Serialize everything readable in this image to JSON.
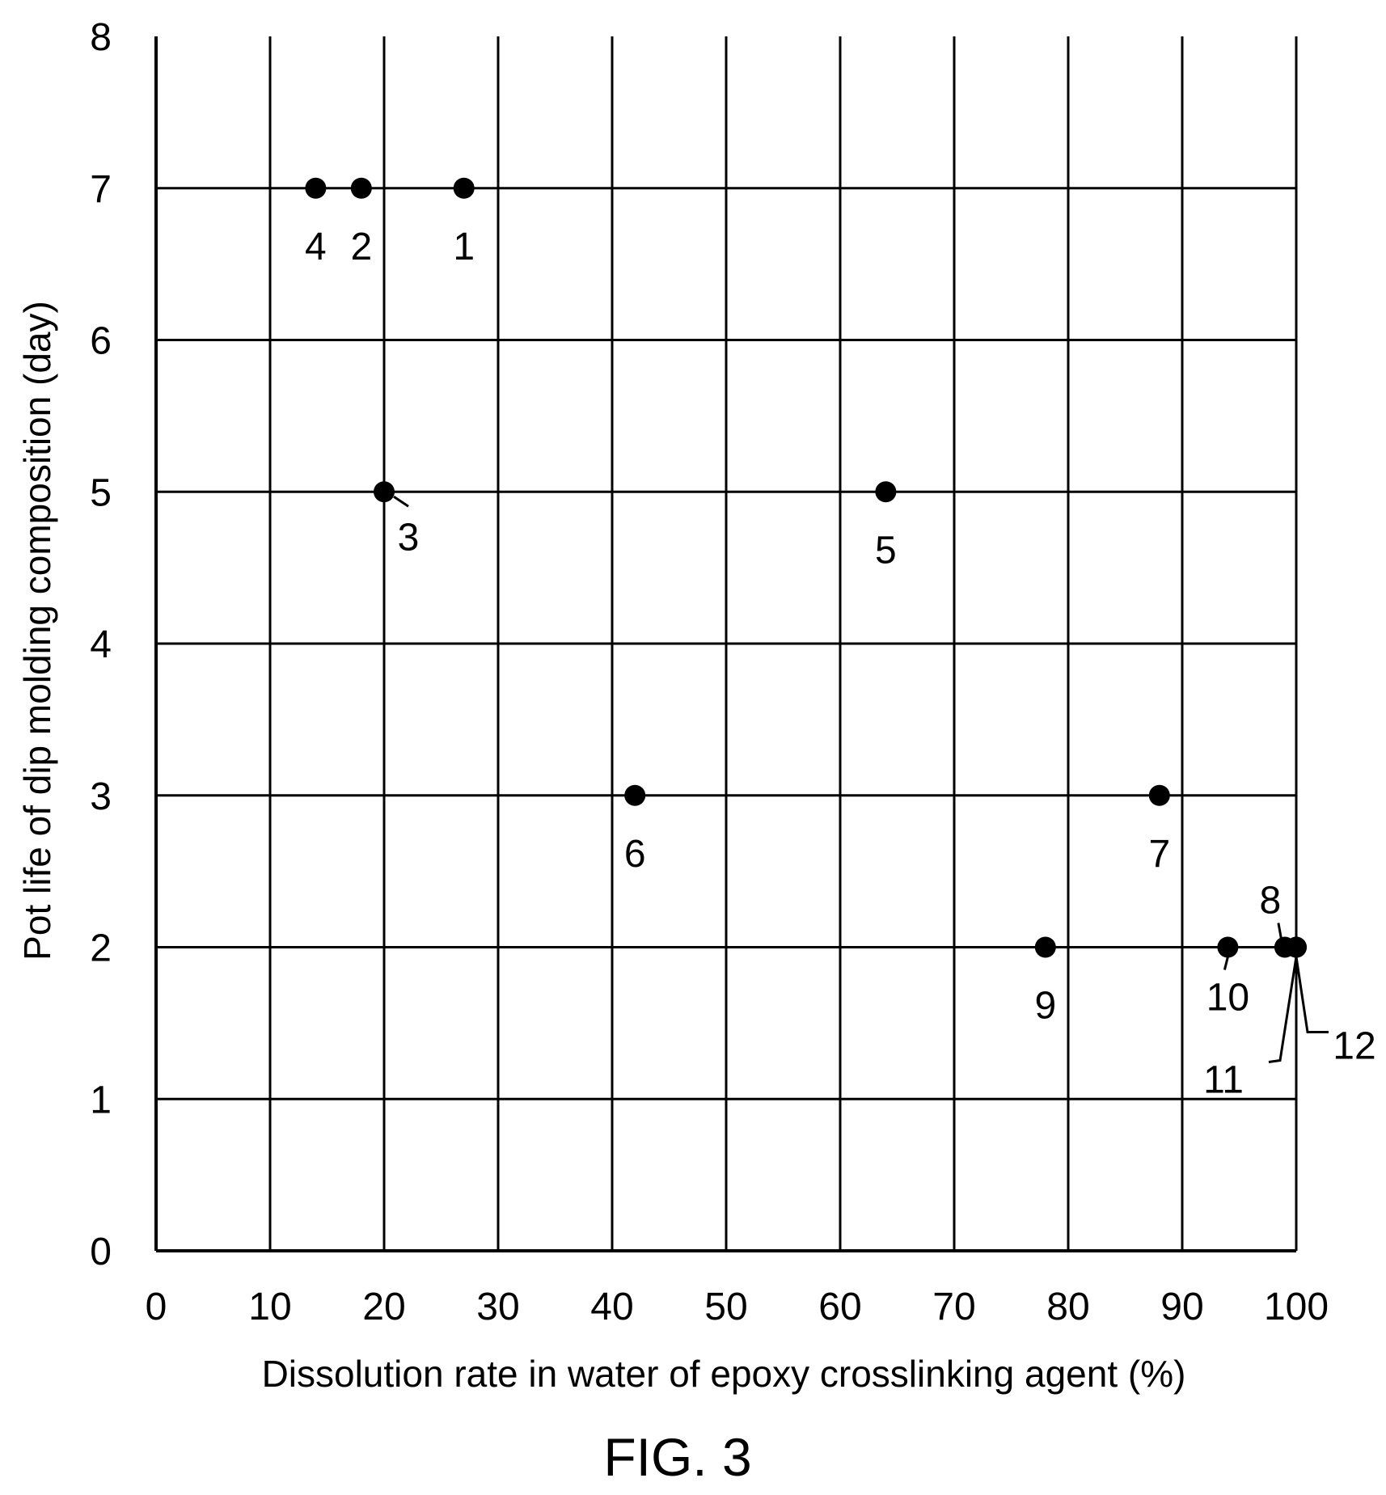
{
  "chart_data": {
    "type": "scatter",
    "title": "",
    "xlabel": "Dissolution rate in water of epoxy crosslinking agent (%)",
    "ylabel": "Pot life of dip molding composition (day)",
    "xlim": [
      0,
      100
    ],
    "ylim": [
      0,
      8
    ],
    "xticks": [
      "0",
      "10",
      "20",
      "30",
      "40",
      "50",
      "60",
      "70",
      "80",
      "90",
      "100"
    ],
    "yticks": [
      "0",
      "1",
      "2",
      "3",
      "4",
      "5",
      "6",
      "7",
      "8"
    ],
    "grid": true,
    "points": [
      {
        "label": "1",
        "x": 27,
        "y": 7
      },
      {
        "label": "2",
        "x": 18,
        "y": 7
      },
      {
        "label": "3",
        "x": 20,
        "y": 5
      },
      {
        "label": "4",
        "x": 14,
        "y": 7
      },
      {
        "label": "5",
        "x": 64,
        "y": 5
      },
      {
        "label": "6",
        "x": 42,
        "y": 3
      },
      {
        "label": "7",
        "x": 88,
        "y": 3
      },
      {
        "label": "8",
        "x": 99,
        "y": 2
      },
      {
        "label": "9",
        "x": 78,
        "y": 2
      },
      {
        "label": "10",
        "x": 94,
        "y": 2
      },
      {
        "label": "11",
        "x": 100,
        "y": 2
      },
      {
        "label": "12",
        "x": 100,
        "y": 2
      }
    ],
    "caption": "FIG. 3"
  }
}
